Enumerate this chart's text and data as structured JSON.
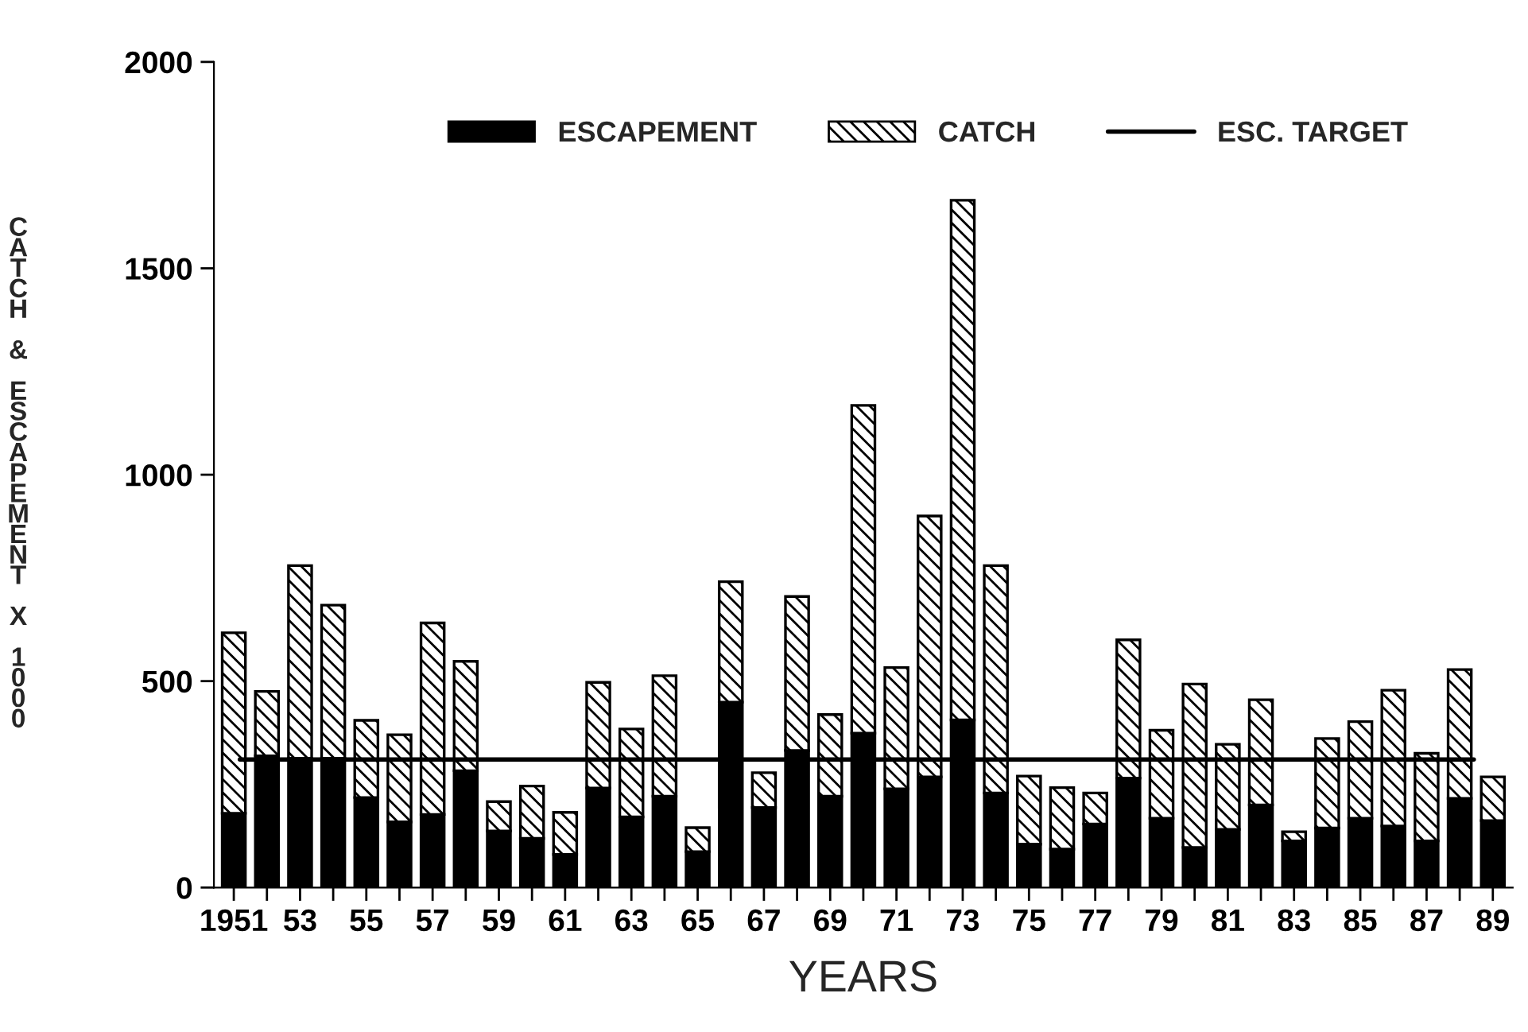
{
  "chart_data": {
    "type": "bar",
    "stacked": true,
    "xlabel": "YEARS",
    "ylabel": "CATCH & ESCAPEMENT X 1000",
    "categories": [
      "1951",
      null,
      "53",
      null,
      "55",
      null,
      "57",
      null,
      "59",
      null,
      "61",
      null,
      "63",
      null,
      "65",
      null,
      "67",
      null,
      "69",
      null,
      "71",
      null,
      "73",
      null,
      "75",
      null,
      "77",
      null,
      "79",
      null,
      "81",
      null,
      "83",
      null,
      "85",
      null,
      "87",
      null,
      "89"
    ],
    "series": [
      {
        "name": "ESCAPEMENT",
        "color": "#000000",
        "values": [
          180,
          319,
          313,
          313,
          218,
          159,
          177,
          283,
          137,
          119,
          80,
          241,
          171,
          221,
          87,
          449,
          194,
          332,
          221,
          374,
          239,
          268,
          406,
          229,
          105,
          93,
          154,
          265,
          168,
          97,
          141,
          200,
          113,
          144,
          168,
          149,
          113,
          216,
          162
        ]
      },
      {
        "name": "CATCH",
        "color": "#000000",
        "values": [
          437,
          156,
          467,
          371,
          187,
          211,
          464,
          265,
          71,
          127,
          102,
          256,
          213,
          292,
          58,
          292,
          84,
          373,
          198,
          794,
          294,
          632,
          1259,
          551,
          165,
          149,
          75,
          335,
          213,
          396,
          206,
          255,
          22,
          217,
          234,
          329,
          212,
          312,
          106
        ]
      }
    ],
    "ref_lines": [
      {
        "axis": "y",
        "value": 310,
        "label": "ESC. TARGET",
        "color": "#000000",
        "line_style": "solid"
      }
    ],
    "ylim": [
      0,
      2000
    ],
    "yticks": [
      0,
      500,
      1000,
      1500,
      2000
    ],
    "grid": false,
    "legend": "top"
  }
}
